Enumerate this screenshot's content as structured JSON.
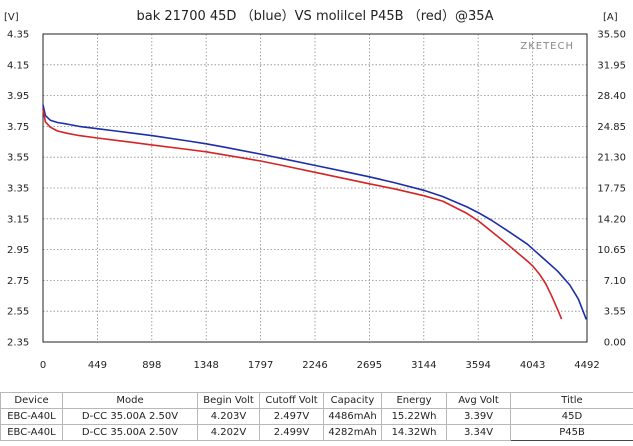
{
  "chart_data": {
    "type": "line",
    "title": "bak 21700 45D （blue）VS molilcel P45B （red）@35A",
    "watermark": "ZKETECH",
    "left_axis_unit": "[V]",
    "right_axis_unit": "[A]",
    "y_ticks": [
      "4.35",
      "4.15",
      "3.95",
      "3.75",
      "3.55",
      "3.35",
      "3.15",
      "2.95",
      "2.75",
      "2.55",
      "2.35"
    ],
    "y2_ticks": [
      "35.50",
      "31.95",
      "28.40",
      "24.85",
      "21.30",
      "17.75",
      "14.20",
      "10.65",
      "7.10",
      "3.55",
      "0.00"
    ],
    "x_ticks": [
      "0",
      "449",
      "898",
      "1348",
      "1797",
      "2246",
      "2695",
      "3144",
      "3594",
      "4043",
      "4492"
    ],
    "xlim": [
      0,
      4492
    ],
    "ylim": [
      2.35,
      4.35
    ],
    "grid": true,
    "series": [
      {
        "color": "#1c2fa6",
        "x": [
          0,
          20,
          60,
          120,
          200,
          300,
          449,
          600,
          898,
          1200,
          1348,
          1500,
          1797,
          2000,
          2246,
          2500,
          2695,
          2900,
          3144,
          3300,
          3500,
          3594,
          3700,
          3850,
          4000,
          4043,
          4150,
          4250,
          4350,
          4420,
          4486
        ],
        "y": [
          3.89,
          3.82,
          3.79,
          3.775,
          3.765,
          3.75,
          3.735,
          3.72,
          3.69,
          3.655,
          3.637,
          3.615,
          3.57,
          3.537,
          3.497,
          3.455,
          3.423,
          3.385,
          3.335,
          3.295,
          3.227,
          3.19,
          3.142,
          3.065,
          2.985,
          2.955,
          2.88,
          2.81,
          2.72,
          2.63,
          2.497
        ]
      },
      {
        "color": "#d42424",
        "x": [
          0,
          20,
          60,
          120,
          200,
          300,
          449,
          600,
          898,
          1200,
          1348,
          1500,
          1797,
          2000,
          2246,
          2500,
          2695,
          2900,
          3144,
          3300,
          3500,
          3594,
          3700,
          3850,
          4000,
          4043,
          4100,
          4150,
          4200,
          4250,
          4282
        ],
        "y": [
          3.86,
          3.78,
          3.745,
          3.72,
          3.705,
          3.69,
          3.675,
          3.66,
          3.63,
          3.6,
          3.585,
          3.565,
          3.525,
          3.493,
          3.452,
          3.41,
          3.377,
          3.345,
          3.3,
          3.265,
          3.185,
          3.137,
          3.07,
          2.975,
          2.875,
          2.845,
          2.79,
          2.73,
          2.65,
          2.56,
          2.499
        ]
      }
    ]
  },
  "results_table": {
    "headers": [
      "Device",
      "Mode",
      "Begin Volt",
      "Cutoff Volt",
      "Capacity",
      "Energy",
      "Avg Volt",
      "Title"
    ],
    "rows": [
      [
        "EBC-A40L",
        "D-CC 35.00A 2.50V",
        "4.203V",
        "2.497V",
        "4486mAh",
        "15.22Wh",
        "3.39V",
        "45D"
      ],
      [
        "EBC-A40L",
        "D-CC 35.00A 2.50V",
        "4.202V",
        "2.499V",
        "4282mAh",
        "14.32Wh",
        "3.34V",
        "P45B"
      ]
    ]
  }
}
